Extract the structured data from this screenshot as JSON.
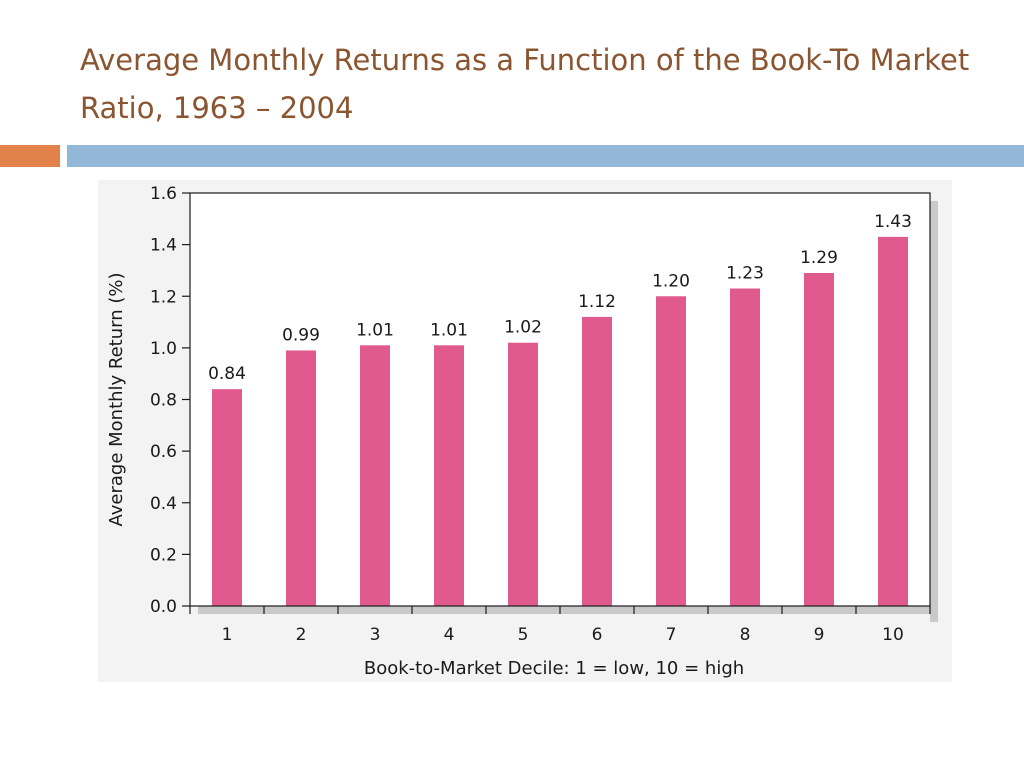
{
  "slide": {
    "title": "Average Monthly Returns as a Function of the Book-To Market Ratio, 1963 – 2004"
  },
  "colors": {
    "title": "#8a5530",
    "accent_orange": "#e0824a",
    "accent_blue": "#93b7d6",
    "bar": "#e05a8e",
    "plot_background": "#ffffff",
    "panel_background": "#f3f3f3"
  },
  "chart_data": {
    "type": "bar",
    "categories": [
      "1",
      "2",
      "3",
      "4",
      "5",
      "6",
      "7",
      "8",
      "9",
      "10"
    ],
    "values": [
      0.84,
      0.99,
      1.01,
      1.01,
      1.02,
      1.12,
      1.2,
      1.23,
      1.29,
      1.43
    ],
    "value_labels": [
      "0.84",
      "0.99",
      "1.01",
      "1.01",
      "1.02",
      "1.12",
      "1.20",
      "1.23",
      "1.29",
      "1.43"
    ],
    "xlabel": "Book-to-Market Decile: 1 = low, 10 = high",
    "ylabel": "Average Monthly Return (%)",
    "ylim": [
      0,
      1.6
    ],
    "yticks": [
      "0.0",
      "0.2",
      "0.4",
      "0.6",
      "0.8",
      "1.0",
      "1.2",
      "1.4",
      "1.6"
    ],
    "grid": false,
    "legend": "none"
  }
}
